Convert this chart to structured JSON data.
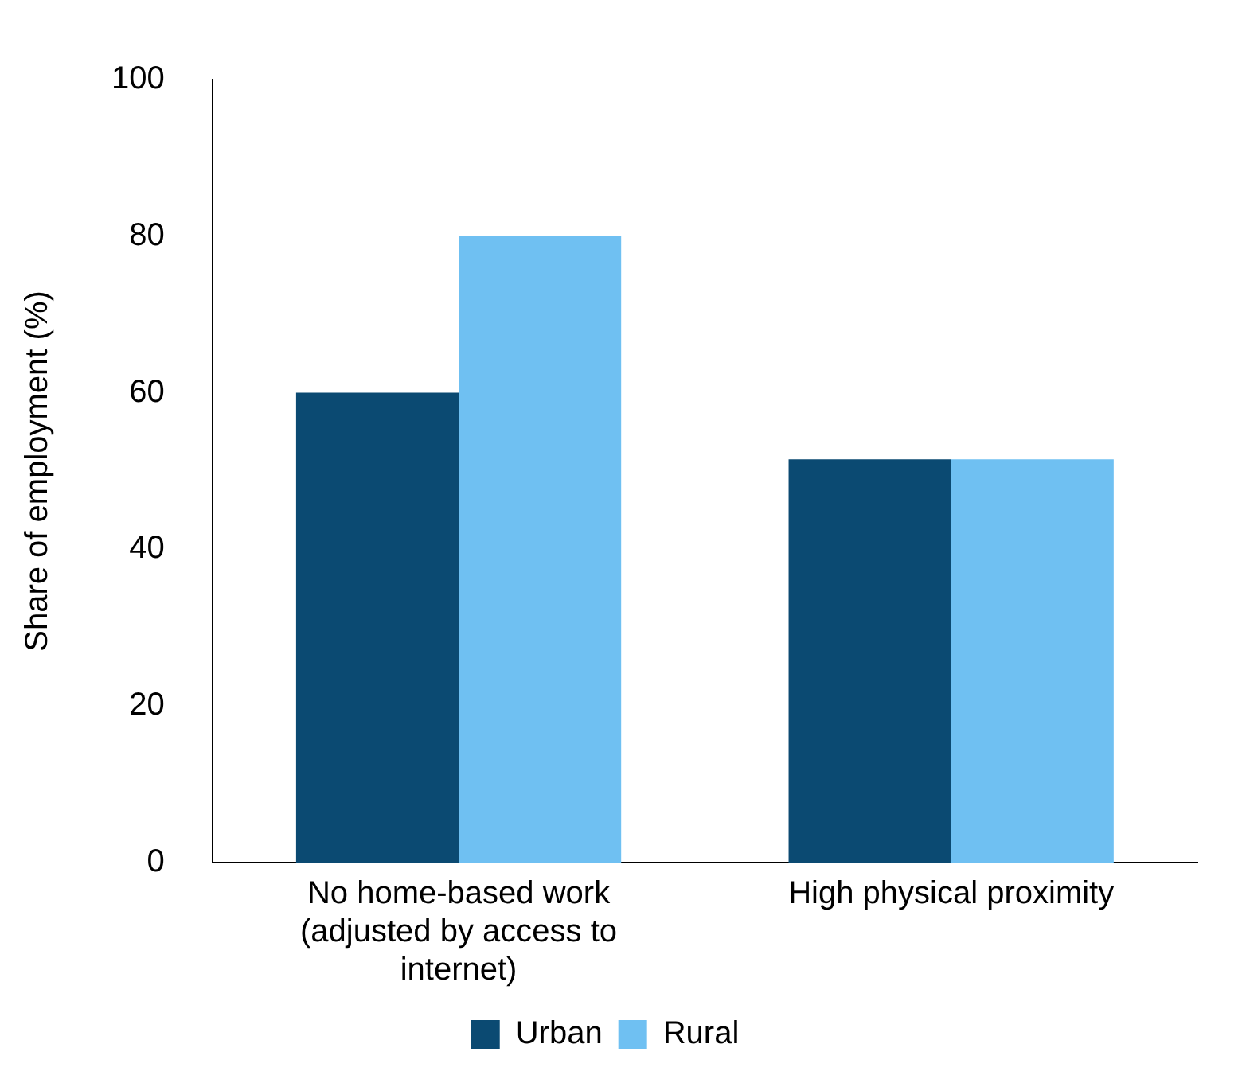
{
  "chart_data": {
    "type": "bar",
    "ylabel": "Share of employment (%)",
    "categories": [
      "No home-based work (adjusted by access to internet)",
      "High physical proximity"
    ],
    "series": [
      {
        "name": "Urban",
        "color": "#0b4a72",
        "values": [
          60,
          51.5
        ]
      },
      {
        "name": "Rural",
        "color": "#6fc0f2",
        "values": [
          80,
          51.5
        ]
      }
    ],
    "ylim": [
      0,
      100
    ],
    "yticks": [
      0,
      20,
      40,
      60,
      80,
      100
    ],
    "grid": false,
    "legend": "bottom"
  }
}
